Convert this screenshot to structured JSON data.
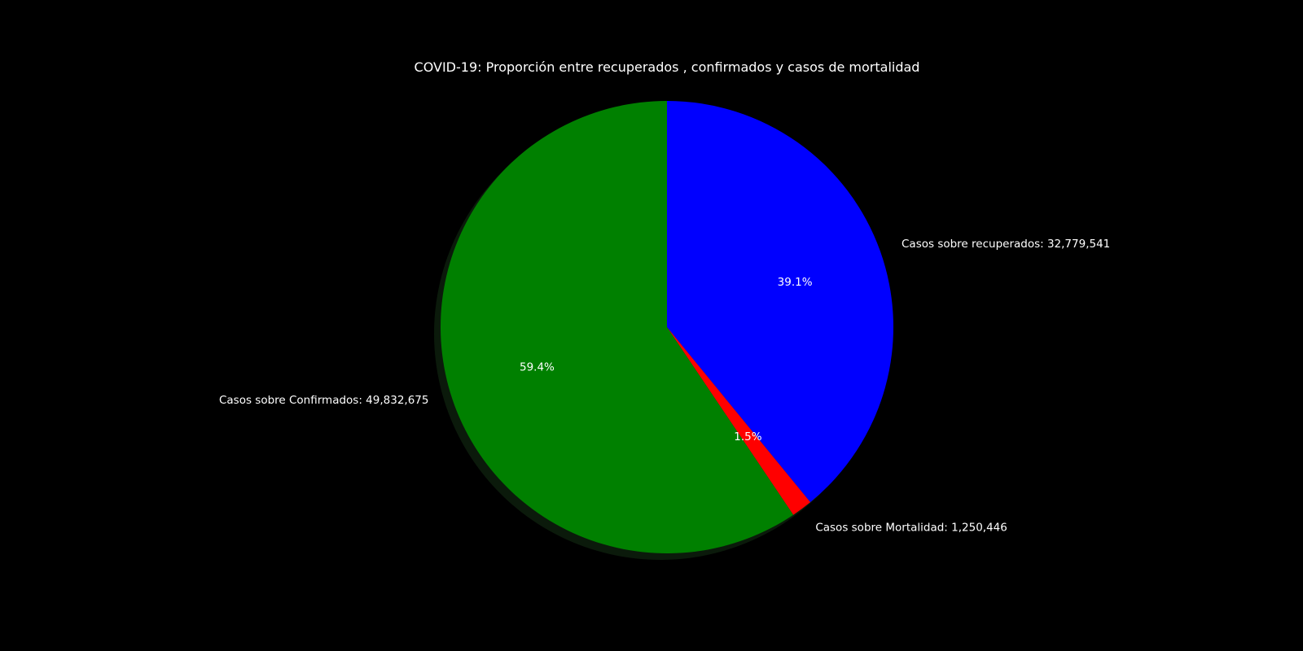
{
  "chart_data": {
    "type": "pie",
    "title": "COVID-19: Proporción entre recuperados , confirmados y casos de mortalidad",
    "start_angle_deg": 90,
    "direction": "clockwise",
    "shadow": true,
    "background": "#000000",
    "slices": [
      {
        "label": "Casos sobre recuperados: 32,779,541",
        "value": 32779541,
        "percent": "39.1%",
        "color": "#0000ff"
      },
      {
        "label": "Casos sobre Mortalidad: 1,250,446",
        "value": 1250446,
        "percent": "1.5%",
        "color": "#ff0000"
      },
      {
        "label": "Casos sobre Confirmados: 49,832,675",
        "value": 49832675,
        "percent": "59.4%",
        "color": "#008000"
      }
    ]
  }
}
